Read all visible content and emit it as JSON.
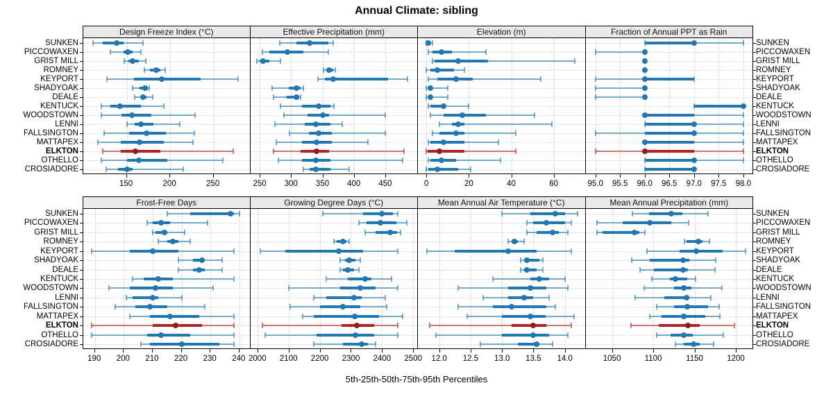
{
  "title": "Annual Climate: sibling",
  "footer": "5th-25th-50th-75th-95th Percentiles",
  "highlight_station": "ELKTON",
  "colors": {
    "series": "#1f77b4",
    "series_light": "rgba(31,119,180,0.6)",
    "series_dot": "#1f77b4",
    "highlight": "#b22222",
    "highlight_light": "rgba(178,34,34,0.6)",
    "highlight_dot": "#8f1d1d",
    "strip_bg": "#e9e9e9",
    "grid": "#c9c9c9"
  },
  "chart_data": {
    "type": "scatter",
    "subtype": "percentile-interval-dotplot",
    "percentile_levels": [
      5,
      25,
      50,
      75,
      95
    ],
    "categories": [
      "SUNKEN",
      "PICCOWAXEN",
      "GRIST MILL",
      "ROMNEY",
      "KEYPORT",
      "SHADYOAK",
      "DEALE",
      "KENTUCK",
      "WOODSTOWN",
      "LENNI",
      "FALLSINGTON",
      "MATTAPEX",
      "ELKTON",
      "OTHELLO",
      "CROSIADORE"
    ],
    "legend": "ELKTON highlighted in red; other stations blue",
    "panels": [
      {
        "title": "Design Freeze Index (°C)",
        "row": 0,
        "col": 0,
        "xlim": [
          100,
          293
        ],
        "ticks": [
          150,
          200,
          250
        ],
        "tick_labels": [
          "150",
          "200",
          "250"
        ],
        "values": [
          [
            111,
            122,
            138,
            146,
            169
          ],
          [
            131,
            146,
            151,
            157,
            166
          ],
          [
            147,
            152,
            157,
            164,
            172
          ],
          [
            170,
            177,
            184,
            189,
            194
          ],
          [
            127,
            158,
            190,
            235,
            278
          ],
          [
            157,
            165,
            171,
            174,
            176
          ],
          [
            159,
            166,
            169,
            173,
            180
          ],
          [
            121,
            131,
            142,
            166,
            193
          ],
          [
            121,
            144,
            156,
            178,
            229
          ],
          [
            150,
            159,
            166,
            181,
            211
          ],
          [
            124,
            153,
            173,
            195,
            228
          ],
          [
            117,
            143,
            165,
            193,
            226
          ],
          [
            122,
            143,
            160,
            189,
            273
          ],
          [
            121,
            150,
            164,
            197,
            261
          ],
          [
            126,
            140,
            150,
            157,
            215
          ]
        ]
      },
      {
        "title": "Effective Precipitation (mm)",
        "row": 0,
        "col": 1,
        "xlim": [
          235,
          502
        ],
        "ticks": [
          250,
          300,
          350,
          400,
          450
        ],
        "tick_labels": [
          "250",
          "300",
          "350",
          "400",
          "450"
        ],
        "values": [
          [
            282,
            309,
            330,
            359,
            367
          ],
          [
            254,
            265,
            294,
            320,
            359
          ],
          [
            246,
            250,
            256,
            265,
            283
          ],
          [
            352,
            356,
            361,
            367,
            370
          ],
          [
            343,
            354,
            367,
            455,
            485
          ],
          [
            270,
            296,
            309,
            315,
            320
          ],
          [
            272,
            293,
            309,
            313,
            315
          ],
          [
            283,
            317,
            344,
            363,
            368
          ],
          [
            289,
            326,
            350,
            361,
            450
          ],
          [
            274,
            322,
            339,
            363,
            381
          ],
          [
            298,
            328,
            344,
            365,
            450
          ],
          [
            276,
            317,
            341,
            365,
            422
          ],
          [
            272,
            315,
            341,
            361,
            480
          ],
          [
            280,
            317,
            339,
            363,
            478
          ],
          [
            320,
            330,
            339,
            363,
            392
          ]
        ]
      },
      {
        "title": "Elevation (m)",
        "row": 0,
        "col": 2,
        "xlim": [
          -4,
          75
        ],
        "ticks": [
          0,
          20,
          40,
          60
        ],
        "tick_labels": [
          "0",
          "20",
          "40",
          "60"
        ],
        "values": [
          [
            0,
            0.5,
            1,
            2,
            3
          ],
          [
            1,
            3,
            7,
            12,
            28
          ],
          [
            3,
            4,
            15,
            29,
            70
          ],
          [
            0,
            2,
            5,
            13,
            18
          ],
          [
            1,
            5,
            14,
            22,
            54
          ],
          [
            0,
            1,
            2,
            3,
            10
          ],
          [
            0,
            1,
            2,
            3,
            10
          ],
          [
            1,
            2,
            8,
            9,
            20
          ],
          [
            2,
            8,
            17,
            28,
            51
          ],
          [
            6,
            12,
            15,
            18,
            59
          ],
          [
            3,
            6,
            14,
            18,
            42
          ],
          [
            1,
            2,
            8,
            18,
            34
          ],
          [
            0,
            0.5,
            6,
            18,
            42
          ],
          [
            1,
            2,
            7,
            14,
            35
          ],
          [
            0,
            1,
            5,
            15,
            21
          ]
        ]
      },
      {
        "title": "Fraction of Annual PPT as Rain",
        "row": 0,
        "col": 3,
        "xlim": [
          94.8,
          98.2
        ],
        "ticks": [
          95.0,
          95.5,
          96.0,
          96.5,
          97.0,
          97.5,
          98.0
        ],
        "tick_labels": [
          "95.0",
          "95.5",
          "96.0",
          "96.5",
          "97.0",
          "97.5",
          "98.0"
        ],
        "values": [
          [
            96,
            96,
            97,
            97,
            98
          ],
          [
            95,
            96,
            96,
            96,
            96
          ],
          [
            96,
            96,
            96,
            96,
            96
          ],
          [
            96,
            96,
            96,
            96,
            96
          ],
          [
            95,
            96,
            96,
            97,
            97
          ],
          [
            95,
            96,
            96,
            96,
            96
          ],
          [
            95,
            96,
            96,
            96,
            96
          ],
          [
            97,
            97,
            98,
            98,
            98
          ],
          [
            96,
            96,
            96,
            97,
            98
          ],
          [
            96,
            96,
            97,
            97,
            98
          ],
          [
            95,
            96,
            97,
            97,
            98
          ],
          [
            96,
            96,
            96,
            97,
            98
          ],
          [
            95,
            96,
            96,
            97,
            98
          ],
          [
            96,
            96,
            97,
            97,
            98
          ],
          [
            96,
            96,
            97,
            97,
            97
          ]
        ]
      },
      {
        "title": "Frost-Free Days",
        "row": 1,
        "col": 0,
        "xlim": [
          186,
          244
        ],
        "ticks": [
          190,
          200,
          210,
          220,
          230,
          240
        ],
        "tick_labels": [
          "190",
          "200",
          "210",
          "220",
          "230",
          "240"
        ],
        "values": [
          [
            215,
            223,
            237,
            238,
            240
          ],
          [
            208,
            210,
            213,
            216,
            229
          ],
          [
            210,
            211,
            214,
            215,
            221
          ],
          [
            212,
            215,
            217,
            219,
            223
          ],
          [
            189,
            202,
            210,
            219,
            238
          ],
          [
            219,
            224,
            227,
            228,
            234
          ],
          [
            219,
            224,
            226,
            228,
            234
          ],
          [
            203,
            207,
            212,
            217,
            238
          ],
          [
            195,
            202,
            211,
            217,
            231
          ],
          [
            201,
            203,
            210,
            212,
            220
          ],
          [
            197,
            204,
            209,
            215,
            228
          ],
          [
            202,
            209,
            216,
            226,
            238
          ],
          [
            189,
            210,
            218,
            227,
            238
          ],
          [
            189,
            208,
            213,
            223,
            238
          ],
          [
            206,
            209,
            220,
            233,
            238
          ]
        ]
      },
      {
        "title": "Growing Degree Days (°C)",
        "row": 1,
        "col": 1,
        "xlim": [
          1977,
          2515
        ],
        "ticks": [
          2000,
          2100,
          2200,
          2300,
          2400,
          2500
        ],
        "tick_labels": [
          "2000",
          "2100",
          "2200",
          "2300",
          "2400",
          "2500"
        ],
        "values": [
          [
            2210,
            2340,
            2400,
            2435,
            2450
          ],
          [
            2325,
            2350,
            2395,
            2445,
            2480
          ],
          [
            2345,
            2380,
            2425,
            2448,
            2460
          ],
          [
            2245,
            2255,
            2275,
            2285,
            2295
          ],
          [
            2010,
            2090,
            2260,
            2340,
            2450
          ],
          [
            2265,
            2280,
            2295,
            2315,
            2330
          ],
          [
            2265,
            2275,
            2290,
            2310,
            2325
          ],
          [
            2220,
            2290,
            2345,
            2365,
            2430
          ],
          [
            2100,
            2265,
            2330,
            2380,
            2450
          ],
          [
            2180,
            2220,
            2310,
            2335,
            2410
          ],
          [
            2105,
            2200,
            2275,
            2330,
            2415
          ],
          [
            2145,
            2180,
            2313,
            2390,
            2465
          ],
          [
            2015,
            2270,
            2320,
            2375,
            2450
          ],
          [
            2025,
            2190,
            2315,
            2375,
            2450
          ],
          [
            2180,
            2275,
            2335,
            2355,
            2380
          ]
        ]
      },
      {
        "title": "Mean Annual Air Temperature (°C)",
        "row": 1,
        "col": 2,
        "xlim": [
          11.66,
          14.33
        ],
        "ticks": [
          12.0,
          12.5,
          13.0,
          13.5,
          14.0
        ],
        "tick_labels": [
          "12.0",
          "12.5",
          "13.0",
          "13.5",
          "14.0"
        ],
        "values": [
          [
            13.0,
            13.45,
            13.85,
            14.0,
            14.2
          ],
          [
            13.4,
            13.5,
            13.7,
            14.0,
            14.1
          ],
          [
            13.4,
            13.55,
            13.8,
            13.9,
            14.05
          ],
          [
            13.1,
            13.15,
            13.2,
            13.25,
            13.35
          ],
          [
            11.8,
            12.25,
            13.1,
            13.55,
            14.1
          ],
          [
            13.3,
            13.35,
            13.4,
            13.6,
            13.65
          ],
          [
            13.3,
            13.35,
            13.4,
            13.55,
            13.65
          ],
          [
            12.85,
            13.45,
            13.6,
            13.75,
            14.0
          ],
          [
            12.3,
            13.1,
            13.45,
            13.7,
            14.05
          ],
          [
            12.7,
            13.1,
            13.35,
            13.5,
            13.75
          ],
          [
            12.3,
            12.85,
            13.15,
            13.7,
            13.85
          ],
          [
            12.45,
            13.0,
            13.45,
            13.7,
            14.15
          ],
          [
            11.85,
            13.15,
            13.5,
            13.7,
            14.1
          ],
          [
            11.95,
            13.0,
            13.5,
            13.75,
            14.05
          ],
          [
            12.65,
            13.25,
            13.55,
            13.6,
            13.8
          ]
        ]
      },
      {
        "title": "Mean Annual Precipitation (mm)",
        "row": 1,
        "col": 3,
        "xlim": [
          1018,
          1221
        ],
        "ticks": [
          1050,
          1100,
          1150,
          1200
        ],
        "tick_labels": [
          "1050",
          "1100",
          "1150",
          "1200"
        ],
        "values": [
          [
            1075,
            1095,
            1122,
            1135,
            1166
          ],
          [
            1032,
            1063,
            1096,
            1122,
            1143
          ],
          [
            1032,
            1039,
            1077,
            1083,
            1090
          ],
          [
            1138,
            1140,
            1155,
            1160,
            1168
          ],
          [
            1092,
            1132,
            1152,
            1184,
            1212
          ],
          [
            1074,
            1096,
            1136,
            1144,
            1176
          ],
          [
            1084,
            1101,
            1136,
            1142,
            1175
          ],
          [
            1098,
            1120,
            1127,
            1141,
            1151
          ],
          [
            1089,
            1125,
            1137,
            1146,
            1183
          ],
          [
            1078,
            1113,
            1140,
            1144,
            1170
          ],
          [
            1104,
            1125,
            1141,
            1166,
            1180
          ],
          [
            1096,
            1110,
            1137,
            1163,
            1181
          ],
          [
            1073,
            1107,
            1142,
            1156,
            1198
          ],
          [
            1104,
            1121,
            1137,
            1148,
            1185
          ],
          [
            1127,
            1137,
            1149,
            1156,
            1173
          ]
        ]
      }
    ]
  }
}
